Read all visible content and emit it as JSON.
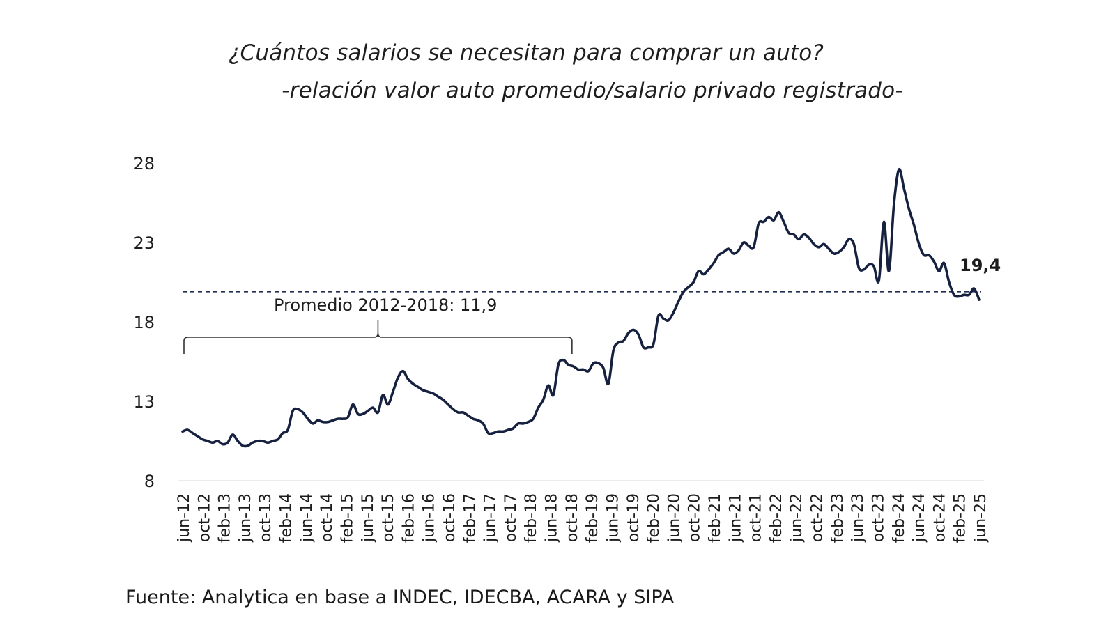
{
  "title": "¿Cuántos salarios se necesitan para comprar un auto?",
  "subtitle": "-relación valor auto promedio/salario privado registrado-",
  "source": "Fuente: Analytica en base a INDEC, IDECBA, ACARA y SIPA",
  "chart_data": {
    "type": "line",
    "yticks": [
      "28",
      "23",
      "18",
      "13",
      "8"
    ],
    "ylim": [
      8,
      28
    ],
    "xticks": [
      "jun-12",
      "oct-12",
      "feb-13",
      "jun-13",
      "oct-13",
      "feb-14",
      "jun-14",
      "oct-14",
      "feb-15",
      "jun-15",
      "oct-15",
      "feb-16",
      "jun-16",
      "oct-16",
      "feb-17",
      "jun-17",
      "oct-17",
      "feb-18",
      "jun-18",
      "oct-18",
      "feb-19",
      "jun-19",
      "oct-19",
      "feb-20",
      "jun-20",
      "oct-20",
      "feb-21",
      "jun-21",
      "oct-21",
      "feb-22",
      "jun-22",
      "oct-22",
      "feb-23",
      "jun-23",
      "oct-23",
      "feb-24",
      "jun-24",
      "oct-24",
      "feb-25",
      "jun-25"
    ],
    "grid": false,
    "legend": "none",
    "line_color": "#16203f",
    "series": [
      {
        "values": [
          11.1,
          11.2,
          11.0,
          10.8,
          10.6,
          10.5,
          10.4,
          10.5,
          10.3,
          10.4,
          10.9,
          10.5,
          10.2,
          10.2,
          10.4,
          10.5,
          10.5,
          10.4,
          10.5,
          10.6,
          11.0,
          11.2,
          12.4,
          12.5,
          12.3,
          11.9,
          11.6,
          11.8,
          11.7,
          11.7,
          11.8,
          11.9,
          11.9,
          12.0,
          12.8,
          12.2,
          12.2,
          12.4,
          12.6,
          12.3,
          13.4,
          12.8,
          13.6,
          14.5,
          14.9,
          14.4,
          14.1,
          13.9,
          13.7,
          13.6,
          13.5,
          13.3,
          13.1,
          12.8,
          12.5,
          12.3,
          12.3,
          12.1,
          11.9,
          11.8,
          11.6,
          11.0,
          11.0,
          11.1,
          11.1,
          11.2,
          11.3,
          11.6,
          11.6,
          11.7,
          11.9,
          12.6,
          13.1,
          14.0,
          13.4,
          15.3,
          15.6,
          15.3,
          15.2,
          15.0,
          15.0,
          14.9,
          15.4,
          15.4,
          15.1,
          14.1,
          16.2,
          16.7,
          16.8,
          17.3,
          17.5,
          17.2,
          16.4,
          16.4,
          16.6,
          18.4,
          18.2,
          18.1,
          18.6,
          19.3,
          19.9,
          20.2,
          20.5,
          21.2,
          21.0,
          21.3,
          21.7,
          22.2,
          22.4,
          22.6,
          22.3,
          22.5,
          23.0,
          22.8,
          22.7,
          24.2,
          24.3,
          24.6,
          24.4,
          24.9,
          24.3,
          23.6,
          23.5,
          23.2,
          23.5,
          23.3,
          22.9,
          22.7,
          22.9,
          22.6,
          22.3,
          22.4,
          22.7,
          23.2,
          22.9,
          21.4,
          21.3,
          21.6,
          21.5,
          20.6,
          24.3,
          21.2,
          25.4,
          27.6,
          26.4,
          25.1,
          24.1,
          22.9,
          22.2,
          22.2,
          21.8,
          21.2,
          21.7,
          20.5,
          19.7,
          19.6,
          19.7,
          19.7,
          20.1,
          19.4
        ],
        "last_label": "19,4"
      }
    ],
    "reference_line": {
      "value": 19.9,
      "style": "dashed"
    },
    "annotation": {
      "text": "Promedio 2012-2018: 11,9",
      "from": "jun-12",
      "to": "oct-18",
      "type": "brace"
    }
  }
}
